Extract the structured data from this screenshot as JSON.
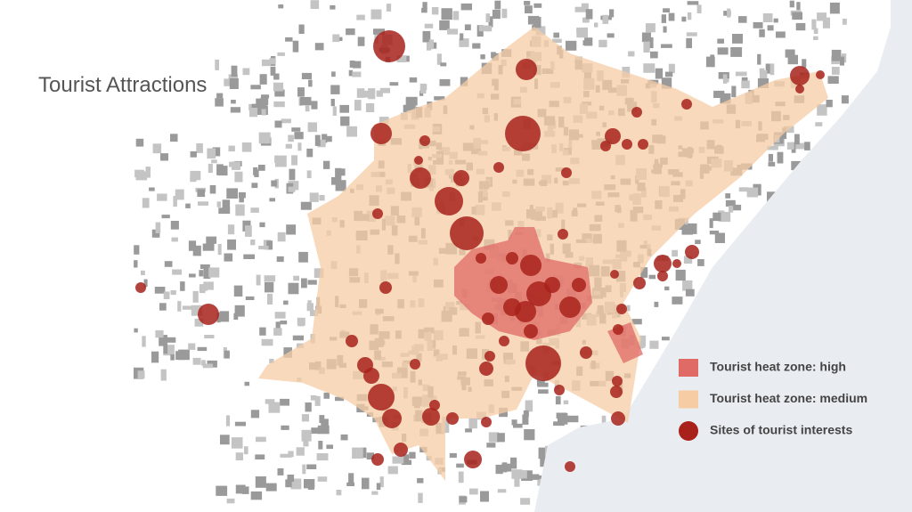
{
  "title": "Tourist Attractions",
  "legend": [
    {
      "label": "Tourist heat zone: high",
      "color": "#e06a66"
    },
    {
      "label": "Tourist heat zone: medium",
      "color": "#f6cca4"
    },
    {
      "label": "Sites of tourist interests",
      "color": "#a8221b"
    }
  ]
}
